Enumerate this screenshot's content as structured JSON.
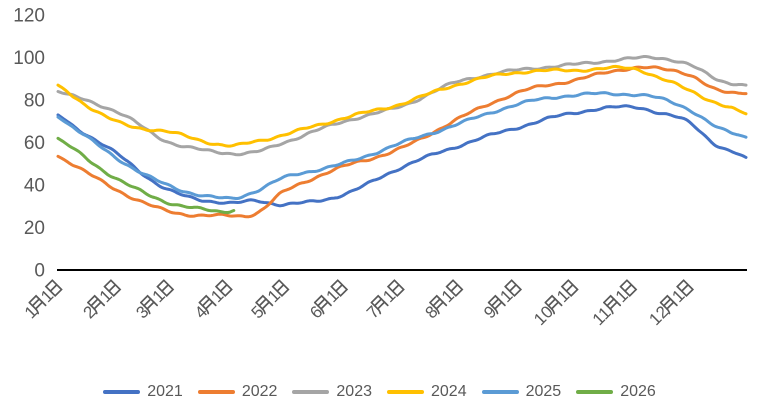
{
  "chart_data": {
    "type": "line",
    "title": "",
    "ylim": [
      0,
      120
    ],
    "y_ticks": [
      0,
      20,
      40,
      60,
      80,
      100,
      120
    ],
    "x_tick_labels": [
      "1月1日",
      "2月1日",
      "3月1日",
      "4月1日",
      "5月1日",
      "6月1日",
      "7月1日",
      "8月1日",
      "9月1日",
      "10月1日",
      "11月1日",
      "12月1日"
    ],
    "month_start_days": [
      0,
      31,
      59,
      90,
      120,
      151,
      181,
      212,
      243,
      273,
      304,
      334
    ],
    "x_total_days": 364,
    "grid": false,
    "legend_position": "bottom",
    "axis_color": "#000000",
    "label_color": "#595959",
    "series": [
      {
        "name": "2021",
        "color": "#4472C4",
        "days": [
          0,
          31,
          59,
          90,
          105,
          120,
          151,
          181,
          212,
          243,
          273,
          304,
          319,
          334,
          349,
          364
        ],
        "values": [
          73,
          55,
          37,
          31,
          32.5,
          31,
          36,
          48,
          58,
          67,
          74.5,
          77,
          73.5,
          69,
          58,
          53
        ]
      },
      {
        "name": "2022",
        "color": "#ED7D31",
        "days": [
          0,
          31,
          59,
          90,
          105,
          120,
          151,
          181,
          212,
          243,
          273,
          304,
          319,
          334,
          349,
          364
        ],
        "values": [
          53.5,
          38,
          28,
          25.5,
          26.5,
          36.5,
          48.5,
          57.5,
          71.5,
          83,
          89,
          95.5,
          95,
          92.5,
          84.5,
          83
        ]
      },
      {
        "name": "2023",
        "color": "#A5A5A5",
        "days": [
          0,
          31,
          59,
          90,
          105,
          120,
          151,
          181,
          212,
          243,
          273,
          304,
          319,
          334,
          349,
          364
        ],
        "values": [
          84,
          74,
          60,
          55.5,
          56,
          60.5,
          69.5,
          76.5,
          89,
          94.5,
          96.5,
          99,
          99.5,
          96.5,
          90,
          87
        ]
      },
      {
        "name": "2024",
        "color": "#FFC000",
        "days": [
          0,
          31,
          59,
          90,
          105,
          120,
          151,
          181,
          212,
          243,
          273,
          304,
          319,
          334,
          349,
          364
        ],
        "values": [
          87,
          70,
          64.5,
          58,
          60.5,
          64,
          72,
          78,
          87,
          93,
          94.5,
          95,
          90,
          84,
          78,
          73.5
        ]
      },
      {
        "name": "2025",
        "color": "#5B9BD5",
        "days": [
          0,
          31,
          59,
          90,
          105,
          120,
          151,
          181,
          212,
          243,
          273,
          304,
          319,
          334,
          349,
          364
        ],
        "values": [
          72,
          53,
          40,
          33.5,
          37,
          43,
          50,
          60,
          69,
          77.5,
          82,
          83,
          81,
          76,
          67,
          62.5
        ]
      },
      {
        "name": "2026",
        "color": "#70AD47",
        "days": [
          0,
          31,
          59,
          90,
          93
        ],
        "values": [
          62,
          42.5,
          31.5,
          27.5,
          28
        ]
      }
    ]
  }
}
